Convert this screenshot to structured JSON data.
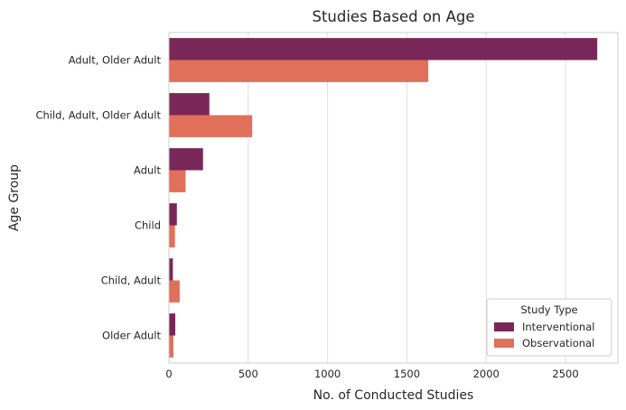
{
  "chart_data": {
    "type": "bar",
    "orientation": "horizontal",
    "title": "Studies Based on Age",
    "xlabel": "No. of Conducted Studies",
    "ylabel": "Age Group",
    "categories": [
      "Adult, Older Adult",
      "Child, Adult, Older Adult",
      "Adult",
      "Child",
      "Child, Adult",
      "Older Adult"
    ],
    "series": [
      {
        "name": "Interventional",
        "color": "#792759",
        "values": [
          2700,
          255,
          215,
          50,
          25,
          40
        ]
      },
      {
        "name": "Observational",
        "color": "#e0705a",
        "values": [
          1635,
          525,
          105,
          38,
          68,
          28
        ]
      }
    ],
    "xlim": [
      0,
      2830
    ],
    "xticks": [
      0,
      500,
      1000,
      1500,
      2000,
      2500
    ],
    "grid": "vertical",
    "legend": {
      "title": "Study Type",
      "position": "lower-right"
    }
  }
}
